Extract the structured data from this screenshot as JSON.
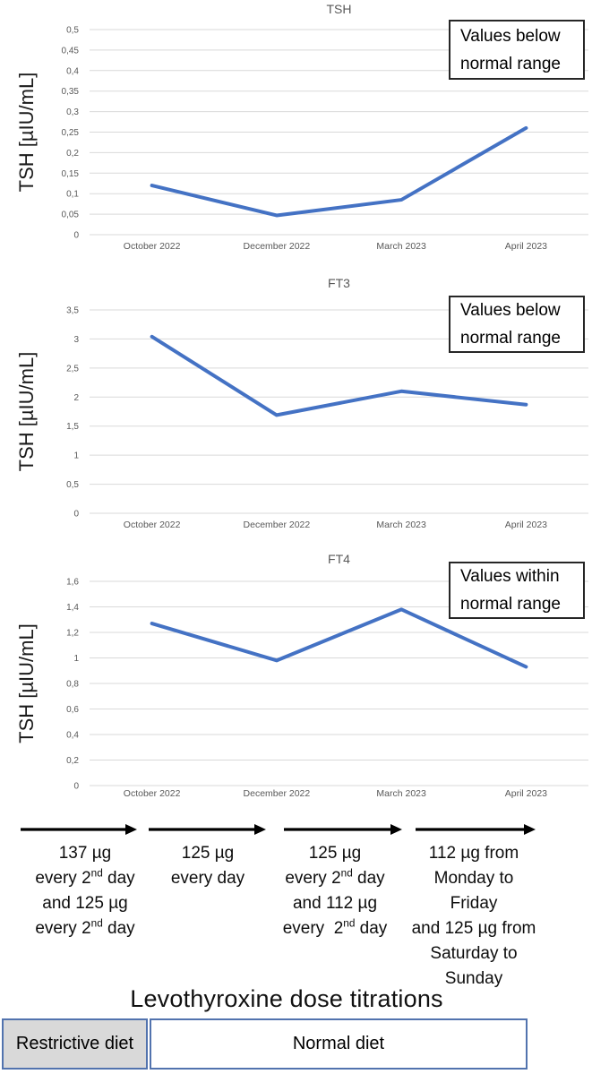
{
  "chart_data": [
    {
      "type": "line",
      "title": "TSH",
      "ylabel": "TSH [µIU/mL]",
      "xlabel": "",
      "categories": [
        "October 2022",
        "December 2022",
        "March 2023",
        "April 2023"
      ],
      "values": [
        0.12,
        0.047,
        0.085,
        0.26
      ],
      "ylim": [
        0,
        0.5
      ],
      "yticks": [
        "0",
        "0,05",
        "0,1",
        "0,15",
        "0,2",
        "0,25",
        "0,3",
        "0,35",
        "0,4",
        "0,45",
        "0,5"
      ],
      "grid": true,
      "legend": "none",
      "line_color": "#4472C4",
      "annotation": {
        "lines": [
          "Values below",
          "normal range"
        ],
        "position": "top-right"
      }
    },
    {
      "type": "line",
      "title": "FT3",
      "ylabel": "TSH [µIU/mL]",
      "xlabel": "",
      "categories": [
        "October 2022",
        "December 2022",
        "March 2023",
        "April 2023"
      ],
      "values": [
        3.04,
        1.69,
        2.1,
        1.87
      ],
      "ylim": [
        0,
        3.5
      ],
      "yticks": [
        "0",
        "0,5",
        "1",
        "1,5",
        "2",
        "2,5",
        "3",
        "3,5"
      ],
      "grid": true,
      "legend": "none",
      "line_color": "#4472C4",
      "annotation": {
        "lines": [
          "Values below",
          "normal range"
        ],
        "position": "top-right"
      }
    },
    {
      "type": "line",
      "title": "FT4",
      "ylabel": "TSH [µIU/mL]",
      "xlabel": "",
      "categories": [
        "October 2022",
        "December 2022",
        "March 2023",
        "April 2023"
      ],
      "values": [
        1.27,
        0.98,
        1.38,
        0.93
      ],
      "ylim": [
        0,
        1.6
      ],
      "yticks": [
        "0",
        "0,2",
        "0,4",
        "0,6",
        "0,8",
        "1",
        "1,2",
        "1,4",
        "1,6"
      ],
      "grid": true,
      "legend": "none",
      "line_color": "#4472C4",
      "annotation": {
        "lines": [
          "Values within",
          "normal range"
        ],
        "position": "top-right"
      }
    }
  ],
  "dose_section": {
    "title": "Levothyroxine dose titrations",
    "phases": [
      {
        "lines": [
          "137 µg",
          "every 2^nd day",
          "and 125 µg",
          "every 2^nd day"
        ]
      },
      {
        "lines": [
          "125 µg",
          "every day"
        ]
      },
      {
        "lines": [
          "125 µg",
          "every 2^nd day",
          "and 112 µg",
          "every  2^nd day"
        ]
      },
      {
        "lines": [
          "112 µg from",
          "Monday to",
          "Friday",
          "and 125 µg from",
          "Saturday to",
          "Sunday"
        ]
      }
    ]
  },
  "diet_bar": {
    "cells": [
      {
        "label": "Restrictive diet",
        "fill": "#D9D9D9"
      },
      {
        "label": "Normal diet",
        "fill": "#FFFFFF"
      }
    ],
    "border_color": "#5273ae"
  },
  "colors": {
    "line": "#4472C4",
    "gridline": "#D9D9D9",
    "axis_text": "#595959",
    "annotation_border": "#262626"
  }
}
